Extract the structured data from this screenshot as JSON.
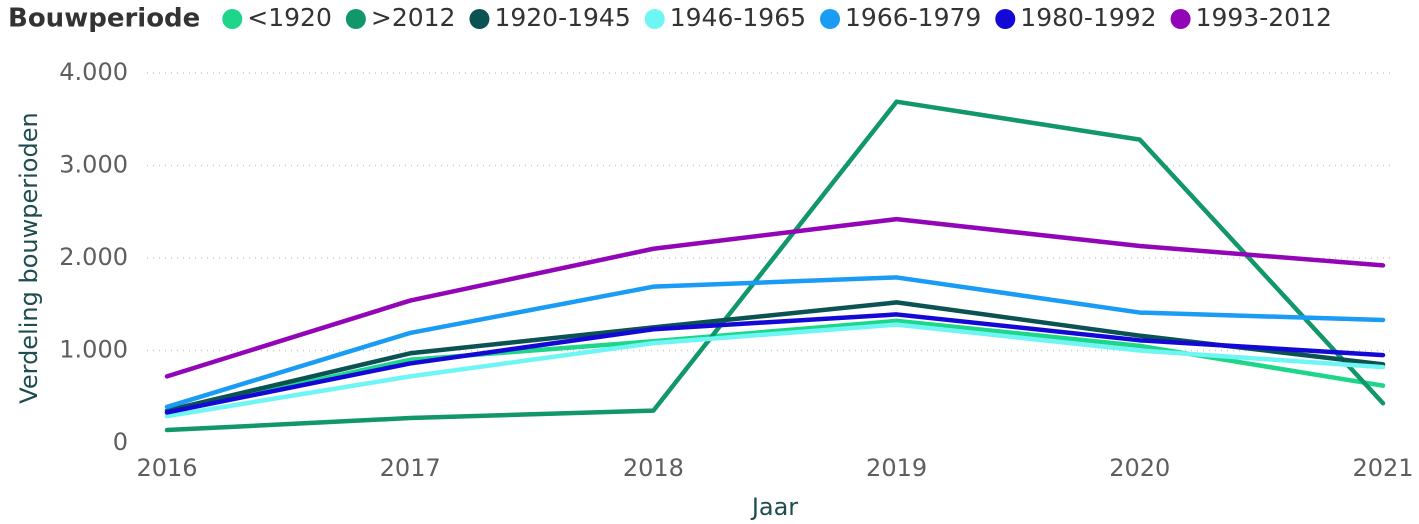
{
  "chart_data": {
    "type": "line",
    "legend_title": "Bouwperiode",
    "x_label": "Jaar",
    "y_label": "Verdeling bouwperioden",
    "x": [
      2016,
      2017,
      2018,
      2019,
      2020,
      2021
    ],
    "xlim": [
      2016,
      2021
    ],
    "xticks": [
      2016,
      2017,
      2018,
      2019,
      2020,
      2021
    ],
    "ylim": [
      0,
      4000
    ],
    "yticks": [
      0,
      {
        "value": 1000,
        "label": "1.000"
      },
      {
        "value": 2000,
        "label": "2.000"
      },
      {
        "value": 3000,
        "label": "3.000"
      },
      {
        "value": 4000,
        "label": "4.000"
      }
    ],
    "grid": true,
    "legend": "top",
    "series": [
      {
        "name": "<1920",
        "color": "#1ed68a",
        "values": [
          330,
          900,
          1100,
          1320,
          1050,
          620
        ]
      },
      {
        "name": ">2012",
        "color": "#12976a",
        "values": [
          140,
          270,
          350,
          3690,
          3280,
          430
        ]
      },
      {
        "name": "1920-1945",
        "color": "#0b5252",
        "values": [
          350,
          970,
          1250,
          1520,
          1160,
          850
        ]
      },
      {
        "name": "1946-1965",
        "color": "#70f5f5",
        "values": [
          290,
          720,
          1080,
          1280,
          1000,
          820
        ]
      },
      {
        "name": "1966-1979",
        "color": "#1a9cf5",
        "values": [
          390,
          1190,
          1690,
          1790,
          1410,
          1330
        ]
      },
      {
        "name": "1980-1992",
        "color": "#1408d6",
        "values": [
          330,
          860,
          1230,
          1390,
          1110,
          950
        ]
      },
      {
        "name": "1993-2012",
        "color": "#9306b8",
        "values": [
          720,
          1540,
          2100,
          2420,
          2130,
          1920
        ]
      }
    ]
  }
}
